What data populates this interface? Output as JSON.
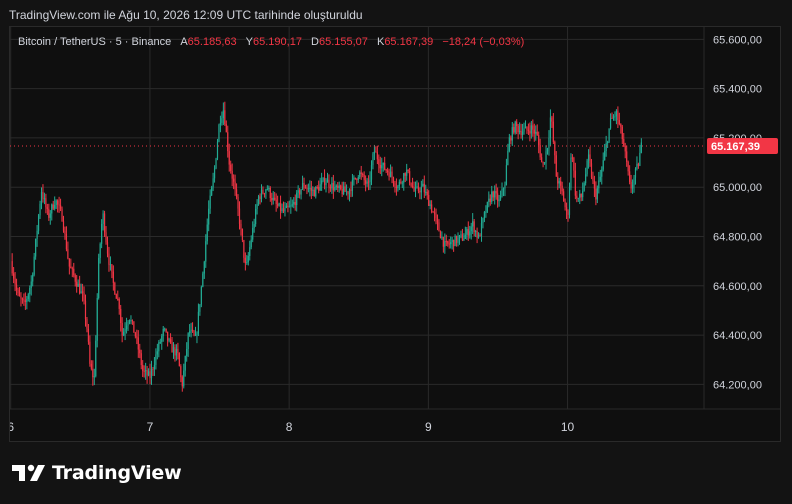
{
  "caption": "TradingView.com ile Ağu 10, 2026 12:09 UTC tarihinde oluşturuldu",
  "legend": {
    "symbol": "Bitcoin / TetherUS · 5 · Binance",
    "open_label": "A",
    "open": "65.185,63",
    "high_label": "Y",
    "high": "65.190,17",
    "low_label": "D",
    "low": "65.155,07",
    "close_label": "K",
    "close": "65.167,39",
    "change": "−18,24 (−0,03%)"
  },
  "brand": {
    "name": "TradingView"
  },
  "colors": {
    "up": "#22ab94",
    "down": "#f23645",
    "bg": "#0f0f0f",
    "grid": "#2a2a2a",
    "text": "#d1d4dc"
  },
  "chart_data": {
    "type": "candlestick",
    "ylim": [
      64100,
      65650
    ],
    "y_ticks": [
      {
        "value": 64200,
        "label": "64.200,00"
      },
      {
        "value": 64400,
        "label": "64.400,00"
      },
      {
        "value": 64600,
        "label": "64.600,00"
      },
      {
        "value": 64800,
        "label": "64.800,00"
      },
      {
        "value": 65000,
        "label": "65.000,00"
      },
      {
        "value": 65200,
        "label": "65.200,00"
      },
      {
        "value": 65400,
        "label": "65.400,00"
      },
      {
        "value": 65600,
        "label": "65.600,00"
      }
    ],
    "x_range": [
      5.995,
      10.98
    ],
    "x_ticks": [
      {
        "value": 6,
        "label": "6"
      },
      {
        "value": 7,
        "label": "7"
      },
      {
        "value": 8,
        "label": "8"
      },
      {
        "value": 9,
        "label": "9"
      },
      {
        "value": 10,
        "label": "10"
      }
    ],
    "last_price": {
      "value": 65167.39,
      "label": "65.167,39"
    },
    "close_path": [
      [
        6.0,
        64700
      ],
      [
        6.05,
        64560
      ],
      [
        6.1,
        64520
      ],
      [
        6.15,
        64620
      ],
      [
        6.22,
        64990
      ],
      [
        6.27,
        64880
      ],
      [
        6.32,
        64950
      ],
      [
        6.37,
        64880
      ],
      [
        6.42,
        64680
      ],
      [
        6.47,
        64620
      ],
      [
        6.52,
        64550
      ],
      [
        6.55,
        64420
      ],
      [
        6.57,
        64270
      ],
      [
        6.6,
        64220
      ],
      [
        6.63,
        64680
      ],
      [
        6.66,
        64900
      ],
      [
        6.7,
        64720
      ],
      [
        6.74,
        64600
      ],
      [
        6.78,
        64520
      ],
      [
        6.8,
        64400
      ],
      [
        6.85,
        64480
      ],
      [
        6.9,
        64390
      ],
      [
        6.95,
        64250
      ],
      [
        7.0,
        64230
      ],
      [
        7.05,
        64330
      ],
      [
        7.1,
        64420
      ],
      [
        7.15,
        64350
      ],
      [
        7.2,
        64320
      ],
      [
        7.23,
        64190
      ],
      [
        7.28,
        64420
      ],
      [
        7.33,
        64380
      ],
      [
        7.38,
        64650
      ],
      [
        7.42,
        64900
      ],
      [
        7.46,
        65050
      ],
      [
        7.5,
        65270
      ],
      [
        7.53,
        65320
      ],
      [
        7.57,
        65100
      ],
      [
        7.6,
        65020
      ],
      [
        7.64,
        64880
      ],
      [
        7.69,
        64660
      ],
      [
        7.73,
        64800
      ],
      [
        7.78,
        64960
      ],
      [
        7.84,
        65000
      ],
      [
        7.9,
        64930
      ],
      [
        7.96,
        64900
      ],
      [
        8.02,
        64920
      ],
      [
        8.1,
        65010
      ],
      [
        8.18,
        64980
      ],
      [
        8.26,
        65030
      ],
      [
        8.34,
        64990
      ],
      [
        8.42,
        64980
      ],
      [
        8.5,
        65060
      ],
      [
        8.57,
        65000
      ],
      [
        8.61,
        65150
      ],
      [
        8.66,
        65090
      ],
      [
        8.72,
        65060
      ],
      [
        8.78,
        65000
      ],
      [
        8.84,
        65070
      ],
      [
        8.9,
        64980
      ],
      [
        8.96,
        65000
      ],
      [
        9.02,
        64920
      ],
      [
        9.08,
        64820
      ],
      [
        9.12,
        64760
      ],
      [
        9.18,
        64780
      ],
      [
        9.26,
        64800
      ],
      [
        9.32,
        64850
      ],
      [
        9.36,
        64790
      ],
      [
        9.41,
        64900
      ],
      [
        9.46,
        64980
      ],
      [
        9.51,
        64940
      ],
      [
        9.55,
        65020
      ],
      [
        9.58,
        65190
      ],
      [
        9.62,
        65250
      ],
      [
        9.66,
        65230
      ],
      [
        9.7,
        65230
      ],
      [
        9.74,
        65240
      ],
      [
        9.78,
        65210
      ],
      [
        9.82,
        65080
      ],
      [
        9.86,
        65180
      ],
      [
        9.88,
        65300
      ],
      [
        9.92,
        65040
      ],
      [
        9.96,
        64980
      ],
      [
        10.0,
        64870
      ],
      [
        10.03,
        65170
      ],
      [
        10.06,
        64950
      ],
      [
        10.1,
        64960
      ],
      [
        10.15,
        65120
      ],
      [
        10.2,
        64960
      ],
      [
        10.24,
        65050
      ],
      [
        10.28,
        65180
      ],
      [
        10.31,
        65270
      ],
      [
        10.35,
        65300
      ],
      [
        10.39,
        65210
      ],
      [
        10.42,
        65110
      ],
      [
        10.45,
        64990
      ],
      [
        10.48,
        65040
      ],
      [
        10.51,
        65100
      ],
      [
        10.53,
        65167
      ]
    ]
  }
}
